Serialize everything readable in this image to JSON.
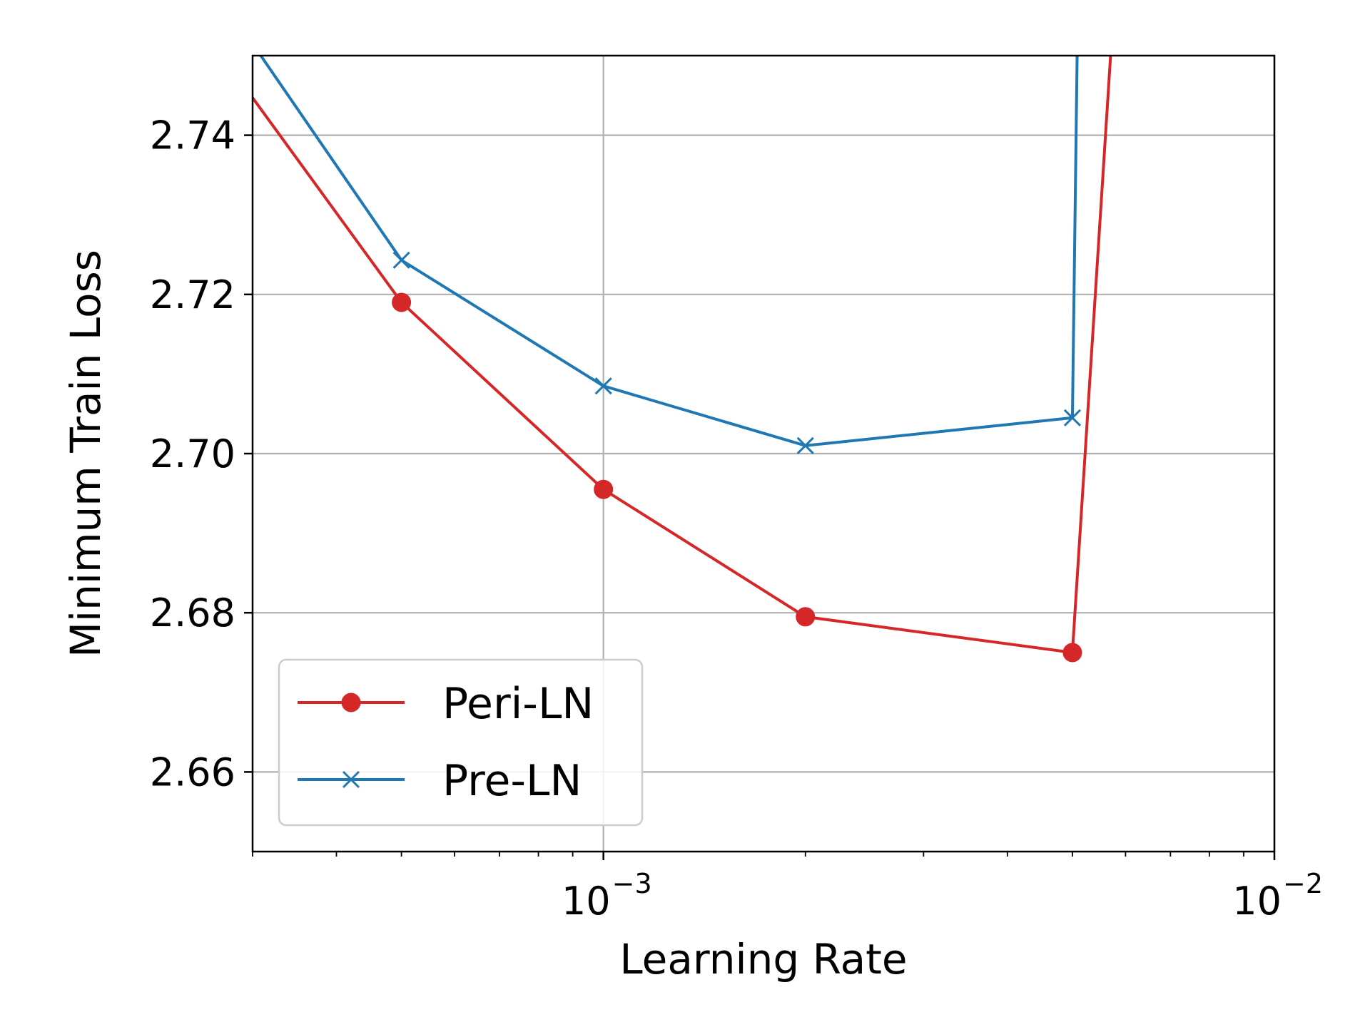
{
  "chart_data": {
    "type": "line",
    "title": "",
    "xlabel": "Learning Rate",
    "ylabel": "Minimum Train Loss",
    "xscale": "log",
    "xlim": [
      0.0003,
      0.01
    ],
    "ylim": [
      2.65,
      2.75
    ],
    "grid": true,
    "legend_position": "lower-left",
    "x_ticks": [
      {
        "value": 0.001,
        "base": "10",
        "exponent": "−3"
      },
      {
        "value": 0.01,
        "base": "10",
        "exponent": "−2"
      }
    ],
    "y_ticks": [
      {
        "value": 2.66,
        "label": "2.66"
      },
      {
        "value": 2.68,
        "label": "2.68"
      },
      {
        "value": 2.7,
        "label": "2.70"
      },
      {
        "value": 2.72,
        "label": "2.72"
      },
      {
        "value": 2.74,
        "label": "2.74"
      }
    ],
    "series": [
      {
        "name": "Peri-LN",
        "color": "#d62728",
        "marker": "circle",
        "x": [
          0.0001,
          0.0005,
          0.001,
          0.002,
          0.005,
          0.0057
        ],
        "y": [
          2.8,
          2.719,
          2.6955,
          2.6795,
          2.675,
          2.75
        ],
        "marker_mask": [
          false,
          true,
          true,
          true,
          true,
          false
        ]
      },
      {
        "name": "Pre-LN",
        "color": "#1f77b4",
        "marker": "x",
        "x": [
          0.0001,
          0.0005,
          0.001,
          0.002,
          0.005,
          0.0051
        ],
        "y": [
          2.81,
          2.7243,
          2.7085,
          2.701,
          2.7045,
          2.76
        ],
        "marker_mask": [
          false,
          true,
          true,
          true,
          true,
          false
        ]
      }
    ]
  }
}
